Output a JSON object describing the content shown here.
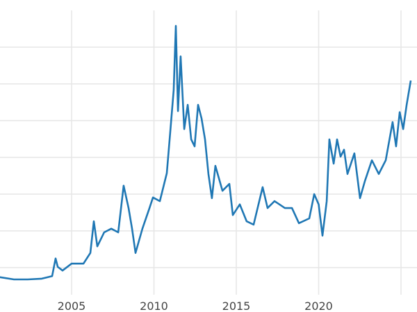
{
  "chart_data": {
    "type": "line",
    "title": "",
    "xlabel": "",
    "ylabel": "",
    "grid": true,
    "xlim": [
      2000.65,
      2025.95
    ],
    "ylim": [
      0,
      8
    ],
    "x_ticks": [
      2005,
      2010,
      2015,
      2020,
      2025
    ],
    "x_tick_labels": [
      "2005",
      "2010",
      "2015",
      "2020",
      ""
    ],
    "y_gridlines": [
      1,
      2,
      3,
      4,
      5,
      6,
      7
    ],
    "y_tick_labels_visible": false,
    "line_color": "#1f77b4",
    "series": [
      {
        "x": [
          2000.65,
          2001.5,
          2002.34,
          2003.19,
          2003.82,
          2004.03,
          2004.16,
          2004.45,
          2005.0,
          2005.72,
          2006.14,
          2006.35,
          2006.56,
          2006.98,
          2007.41,
          2007.83,
          2008.16,
          2008.46,
          2008.67,
          2008.88,
          2009.3,
          2009.73,
          2009.94,
          2010.36,
          2010.78,
          2010.99,
          2011.2,
          2011.33,
          2011.46,
          2011.62,
          2011.84,
          2012.05,
          2012.26,
          2012.47,
          2012.68,
          2012.89,
          2013.1,
          2013.31,
          2013.52,
          2013.73,
          2014.16,
          2014.58,
          2014.79,
          2015.21,
          2015.63,
          2016.05,
          2016.6,
          2016.9,
          2017.32,
          2017.95,
          2018.38,
          2018.8,
          2019.43,
          2019.73,
          2020.0,
          2020.23,
          2020.49,
          2020.65,
          2020.91,
          2021.12,
          2021.33,
          2021.54,
          2021.75,
          2022.17,
          2022.51,
          2022.81,
          2023.23,
          2023.65,
          2024.07,
          2024.49,
          2024.7,
          2024.92,
          2025.13,
          2025.34,
          2025.59
        ],
        "y": [
          0.74,
          0.68,
          0.68,
          0.7,
          0.77,
          1.25,
          1.02,
          0.92,
          1.11,
          1.11,
          1.4,
          2.26,
          1.58,
          1.96,
          2.06,
          1.96,
          3.23,
          2.62,
          2.06,
          1.4,
          2.06,
          2.62,
          2.91,
          2.81,
          3.57,
          4.7,
          5.83,
          7.58,
          5.26,
          6.75,
          4.77,
          5.43,
          4.49,
          4.3,
          5.43,
          5.06,
          4.49,
          3.55,
          2.89,
          3.77,
          3.09,
          3.28,
          2.43,
          2.72,
          2.26,
          2.17,
          3.19,
          2.62,
          2.81,
          2.62,
          2.62,
          2.21,
          2.34,
          3.0,
          2.72,
          1.87,
          2.81,
          4.49,
          3.83,
          4.49,
          4.02,
          4.21,
          3.55,
          4.11,
          2.89,
          3.36,
          3.92,
          3.55,
          3.92,
          4.96,
          4.3,
          5.23,
          4.77,
          5.43,
          6.09
        ]
      }
    ]
  }
}
